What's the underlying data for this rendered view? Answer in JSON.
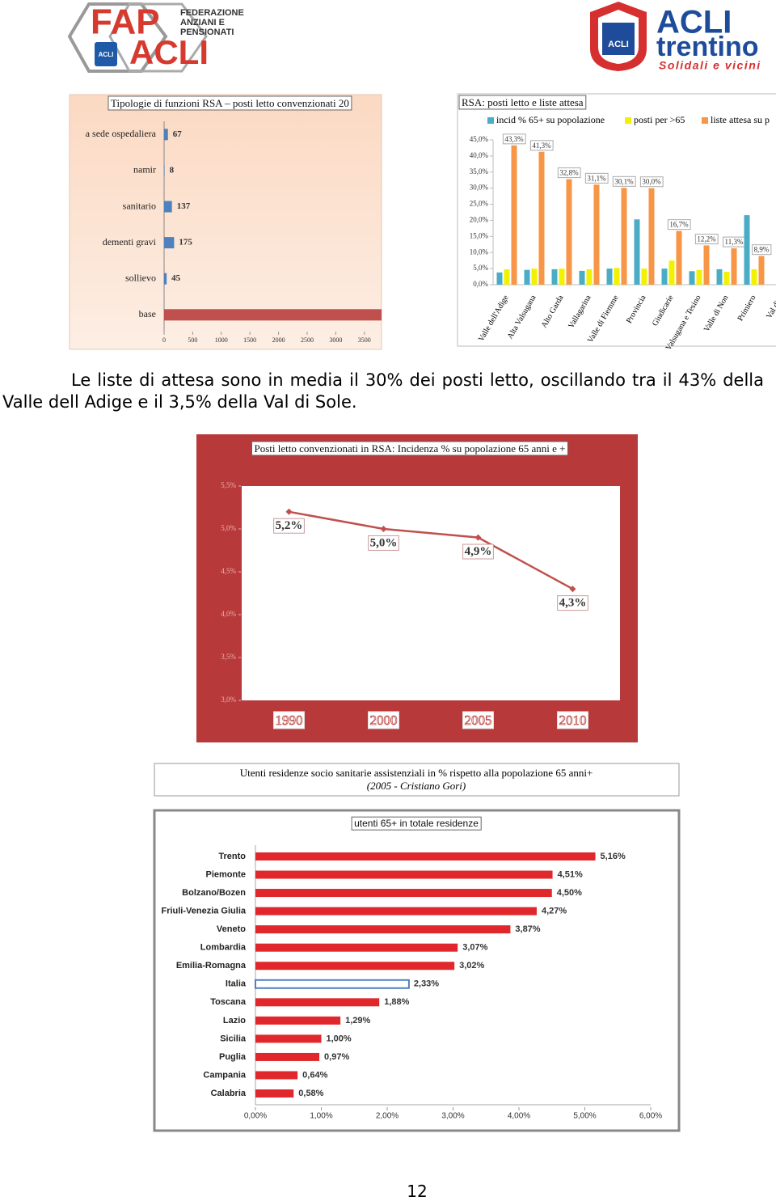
{
  "logos": {
    "left": {
      "top": "FAP",
      "bottom": "ACLI",
      "badge": "ACLI",
      "lines": [
        "FEDERAZIONE",
        "ANZIANI E",
        "PENSIONATI"
      ]
    },
    "right": {
      "badge": "ACLI",
      "top": "ACLI",
      "bottom": "trentino",
      "tagline": "Solidali e vicini"
    }
  },
  "chart_data": [
    {
      "type": "bar",
      "orientation": "horizontal",
      "title": "Tipologie di funzioni RSA – posti letto convenzionati 20",
      "categories": [
        "a sede ospedaliera",
        "namir",
        "sanitario",
        "dementi gravi",
        "sollievo",
        "base"
      ],
      "values": [
        67,
        8,
        137,
        175,
        45,
        3800
      ],
      "colors": [
        "#4f81bd",
        "#4f81bd",
        "#4f81bd",
        "#4f81bd",
        "#4f81bd",
        "#c0504d"
      ],
      "xlim": [
        0,
        3800
      ],
      "xticks": [
        0,
        500,
        1000,
        1500,
        2000,
        2500,
        3000,
        3500
      ]
    },
    {
      "type": "bar",
      "orientation": "vertical",
      "title": "RSA: posti letto e liste attesa",
      "categories": [
        "Valle dell'Adige",
        "Alta Valsugana",
        "Alto Garda",
        "Vallagarina",
        "Valle di Fiemme",
        "Provincia",
        "Giudicarie",
        "Valsugana e Tesino",
        "Valle di Non",
        "Primiero",
        "Val di S"
      ],
      "series": [
        {
          "name": "incid % 65+ su popolazione",
          "color": "#4bacc6",
          "values": [
            3.8,
            4.6,
            4.8,
            4.3,
            5.0,
            20.3,
            5.0,
            4.2,
            4.8,
            21.6,
            null
          ]
        },
        {
          "name": "posti per >65",
          "color": "#f2f200",
          "values": [
            4.8,
            5.0,
            5.0,
            4.8,
            5.2,
            5.0,
            7.5,
            4.6,
            4.0,
            4.8,
            null
          ]
        },
        {
          "name": "liste attesa su p",
          "color": "#f79646",
          "values": [
            43.3,
            41.3,
            32.8,
            31.1,
            30.1,
            30.0,
            16.7,
            12.2,
            11.3,
            8.9,
            null
          ],
          "value_labels": [
            "43,3%",
            "41,3%",
            "32,8%",
            "31,1%",
            "30,1%",
            "30,0%",
            "16,7%",
            "12,2%",
            "11,3%",
            "8,9%",
            null
          ]
        }
      ],
      "ylim": [
        0,
        45
      ],
      "yticks": [
        {
          "value": 0,
          "label": "0,0%"
        },
        {
          "value": 5,
          "label": "5,0%"
        },
        {
          "value": 10,
          "label": "10,0%"
        },
        {
          "value": 15,
          "label": "15,0%"
        },
        {
          "value": 20,
          "label": "20,0%"
        },
        {
          "value": 25,
          "label": "25,0%"
        },
        {
          "value": 30,
          "label": "30,0%"
        },
        {
          "value": 35,
          "label": "35,0%"
        },
        {
          "value": 40,
          "label": "40,0%"
        },
        {
          "value": 45,
          "label": "45,0%"
        }
      ]
    },
    {
      "type": "line",
      "title": "Posti letto convenzionati in RSA: Incidenza % su popolazione 65 anni e +",
      "categories": [
        "1990",
        "2000",
        "2005",
        "2010"
      ],
      "values": [
        5.2,
        5.0,
        4.9,
        4.3
      ],
      "value_labels": [
        "5,2%",
        "5,0%",
        "4,9%",
        "4,3%"
      ],
      "color": "#c0504d",
      "ylim": [
        3.0,
        5.5
      ],
      "yticks": [
        {
          "value": 3.0,
          "label": "3,0%"
        },
        {
          "value": 3.5,
          "label": "3,5%"
        },
        {
          "value": 4.0,
          "label": "4,0%"
        },
        {
          "value": 4.5,
          "label": "4,5%"
        },
        {
          "value": 5.0,
          "label": "5,0%"
        },
        {
          "value": 5.5,
          "label": "5,5%"
        }
      ]
    },
    {
      "type": "bar",
      "orientation": "horizontal",
      "subtitle": "Utenti residenze socio sanitarie assistenziali in % rispetto alla popolazione 65 anni+",
      "source": "(2005 - Cristiano Gori)",
      "title": "utenti 65+ in totale residenze",
      "categories": [
        "Trento",
        "Piemonte",
        "Bolzano/Bozen",
        "Friuli-Venezia Giulia",
        "Veneto",
        "Lombardia",
        "Emilia-Romagna",
        "Italia",
        "Toscana",
        "Lazio",
        "Sicilia",
        "Puglia",
        "Campania",
        "Calabria"
      ],
      "values": [
        5.16,
        4.51,
        4.5,
        4.27,
        3.87,
        3.07,
        3.02,
        2.33,
        1.88,
        1.29,
        1.0,
        0.97,
        0.64,
        0.58
      ],
      "value_labels": [
        "5,16%",
        "4,51%",
        "4,50%",
        "4,27%",
        "3,87%",
        "3,07%",
        "3,02%",
        "2,33%",
        "1,88%",
        "1,29%",
        "1,00%",
        "0,97%",
        "0,64%",
        "0,58%"
      ],
      "colors": [
        "#e0282c",
        "#e0282c",
        "#e0282c",
        "#e0282c",
        "#e0282c",
        "#e0282c",
        "#e0282c",
        "#ffffff",
        "#e0282c",
        "#e0282c",
        "#e0282c",
        "#e0282c",
        "#e0282c",
        "#e0282c"
      ],
      "xlim": [
        0,
        6
      ],
      "xticks": [
        {
          "value": 0,
          "label": "0,00%"
        },
        {
          "value": 1,
          "label": "1,00%"
        },
        {
          "value": 2,
          "label": "2,00%"
        },
        {
          "value": 3,
          "label": "3,00%"
        },
        {
          "value": 4,
          "label": "4,00%"
        },
        {
          "value": 5,
          "label": "5,00%"
        },
        {
          "value": 6,
          "label": "6,00%"
        }
      ]
    }
  ],
  "paragraph": "Le liste di attesa sono in media il 30% dei posti letto, oscillando tra il 43% della Valle dell Adige e il 3,5% della Val di Sole.",
  "page_number": "12"
}
